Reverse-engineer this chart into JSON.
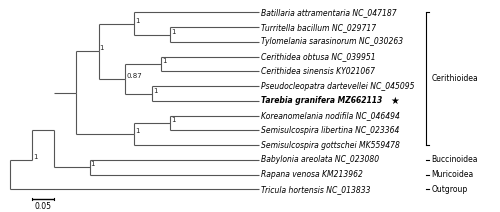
{
  "taxa": [
    {
      "name": "Batillaria attramentaria NC_047187",
      "y": 13,
      "bold": false
    },
    {
      "name": "Turritella bacillum NC_029717",
      "y": 12,
      "bold": false
    },
    {
      "name": "Tylomelania sarasinorum NC_030263",
      "y": 11,
      "bold": false
    },
    {
      "name": "Cerithidea obtusa NC_039951",
      "y": 10,
      "bold": false
    },
    {
      "name": "Cerithidea sinensis KY021067",
      "y": 9,
      "bold": false
    },
    {
      "name": "Pseudocleopatra dartevellei NC_045095",
      "y": 8,
      "bold": false
    },
    {
      "name": "Tarebia granifera MZ662113",
      "y": 7,
      "bold": true
    },
    {
      "name": "Koreanomelania nodifila NC_046494",
      "y": 6,
      "bold": false
    },
    {
      "name": "Semisulcospira libertina NC_023364",
      "y": 5,
      "bold": false
    },
    {
      "name": "Semisulcospira gottschei MK559478",
      "y": 4,
      "bold": false
    },
    {
      "name": "Babylonia areolata NC_023080",
      "y": 3,
      "bold": false
    },
    {
      "name": "Rapana venosa KM213962",
      "y": 2,
      "bold": false
    },
    {
      "name": "Tricula hortensis NC_013833",
      "y": 1,
      "bold": false
    }
  ],
  "line_color": "#555555",
  "text_color": "#000000",
  "font_size": 5.5,
  "bs_font_size": 5.0
}
